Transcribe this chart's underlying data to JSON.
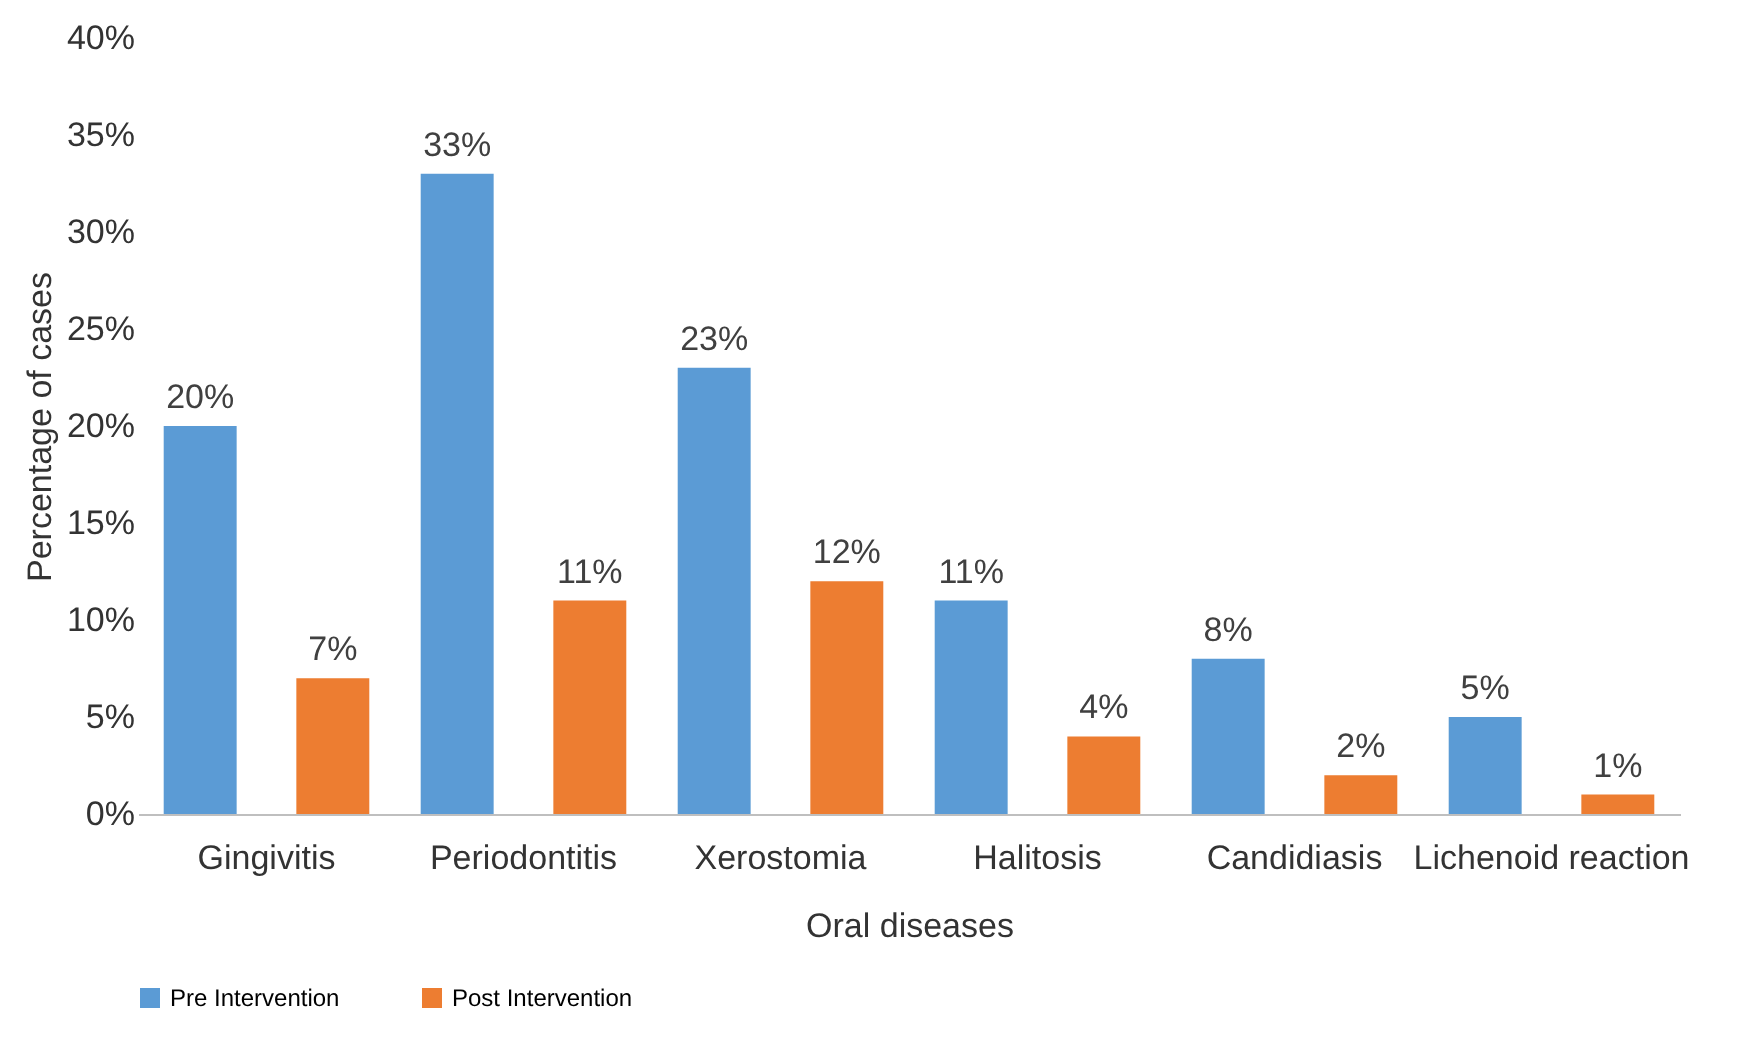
{
  "chart_data": {
    "type": "bar",
    "xlabel": "Oral diseases",
    "ylabel": "Percentage of cases",
    "categories": [
      "Gingivitis",
      "Periodontitis",
      "Xerostomia",
      "Halitosis",
      "Candidiasis",
      "Lichenoid reaction"
    ],
    "series": [
      {
        "name": "Pre Intervention",
        "color": "#5b9bd5",
        "values": [
          20,
          33,
          23,
          11,
          8,
          5
        ],
        "value_labels": [
          "20%",
          "33%",
          "23%",
          "11%",
          "8%",
          "5%"
        ]
      },
      {
        "name": "Post Intervention",
        "color": "#ed7d31",
        "values": [
          7,
          11,
          12,
          4,
          2,
          1
        ],
        "value_labels": [
          "7%",
          "11%",
          "12%",
          "4%",
          "2%",
          "1%"
        ]
      }
    ],
    "ylim": [
      0,
      40
    ],
    "yticks": [
      {
        "value": 0,
        "label": "0%"
      },
      {
        "value": 5,
        "label": "5%"
      },
      {
        "value": 10,
        "label": "10%"
      },
      {
        "value": 15,
        "label": "15%"
      },
      {
        "value": 20,
        "label": "20%"
      },
      {
        "value": 25,
        "label": "25%"
      },
      {
        "value": 30,
        "label": "30%"
      },
      {
        "value": 35,
        "label": "35%"
      },
      {
        "value": 40,
        "label": "40%"
      }
    ],
    "grid": false,
    "legend": "bottom"
  }
}
